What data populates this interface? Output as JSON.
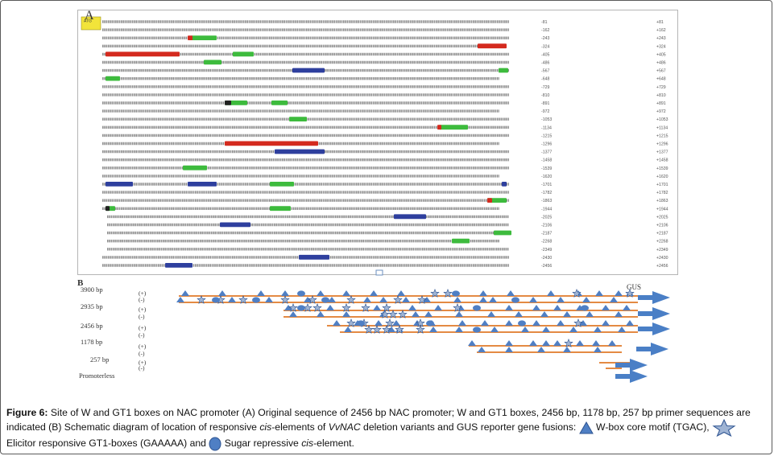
{
  "panel_a": {
    "label": "A",
    "start_box": "ATG",
    "left_numbers": [
      "-81",
      "-162",
      "-243",
      "-324",
      "-405",
      "-486",
      "-567",
      "-648",
      "-729",
      "-810",
      "-891",
      "-972",
      "-1053",
      "-1134",
      "-1215",
      "-1296",
      "-1377",
      "-1458",
      "-1539",
      "-1620",
      "-1701",
      "-1782",
      "-1863",
      "-1944",
      "-2025",
      "-2106",
      "-2187",
      "-2268",
      "-2349",
      "-2430",
      "-2456"
    ],
    "right_numbers": [
      "+81",
      "+162",
      "+243",
      "+324",
      "+405",
      "+486",
      "+567",
      "+648",
      "+729",
      "+810",
      "+891",
      "+972",
      "+1053",
      "+1134",
      "+1215",
      "+1296",
      "+1377",
      "+1458",
      "+1539",
      "+1620",
      "+1701",
      "+1782",
      "+1863",
      "+1944",
      "+2025",
      "+2106",
      "+2187",
      "+2268",
      "+2349",
      "+2430",
      "+2456"
    ],
    "colors": {
      "w_box": "#2e3f9e",
      "gt1_box": "#3dbb3d",
      "primer": "#d42a1e",
      "text": "#6a6a6a"
    }
  },
  "panel_b": {
    "label": "B",
    "gene_label": "GUS",
    "constructs": [
      {
        "size": "3900 bp",
        "plus": "(+)",
        "minus": "(-)"
      },
      {
        "size": "2935 bp",
        "plus": "(+)",
        "minus": "(-)"
      },
      {
        "size": "2456 bp",
        "plus": "(+)",
        "minus": "(-)"
      },
      {
        "size": "1178 bp",
        "plus": "(+)",
        "minus": "(-)"
      },
      {
        "size": "257 bp",
        "plus": "(+)",
        "minus": "(-)"
      },
      {
        "size": "Promoterless",
        "plus": "",
        "minus": ""
      }
    ],
    "colors": {
      "line": "#e07a28",
      "arrow": "#4a7fc6",
      "symbol": "#4f7fc4",
      "star_fill": "#9fb4d4"
    }
  },
  "caption": {
    "figure_label": "Figure 6:",
    "text_1": " Site of W and GT1 boxes on NAC promoter (A) Original sequence of 2456 bp NAC promoter; W and GT1 boxes, 2456 bp, 1178 bp, 257 bp primer sequences are indicated (B) Schematic diagram of location of responsive ",
    "cis_italic": "cis",
    "text_2": "-elements of ",
    "gene_italic": "VvNAC",
    "text_3": " deletion variants and GUS reporter gene fusions: ",
    "text_4": " W-box core motif (TGAC), ",
    "text_5": " Elicitor responsive GT1-boxes (GAAAAA) and ",
    "text_6": " Sugar repressive ",
    "text_7": "-element."
  }
}
